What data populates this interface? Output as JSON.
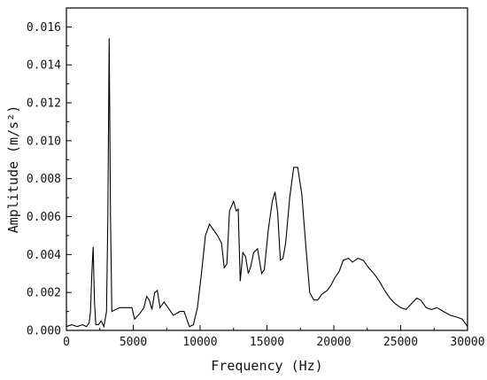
{
  "chart_data": {
    "type": "line",
    "xlabel": "Frequency (Hz)",
    "ylabel": "Amplitude (m/s²)",
    "xlim": [
      0,
      30000
    ],
    "ylim": [
      0,
      0.017
    ],
    "xticks": [
      0,
      5000,
      10000,
      15000,
      20000,
      25000,
      30000
    ],
    "xtick_labels": [
      "0",
      "5000",
      "10000",
      "15000",
      "20000",
      "25000",
      "30000"
    ],
    "yticks": [
      0,
      0.002,
      0.004,
      0.006,
      0.008,
      0.01,
      0.012,
      0.014,
      0.016
    ],
    "ytick_labels": [
      "0.000",
      "0.002",
      "0.004",
      "0.006",
      "0.008",
      "0.010",
      "0.012",
      "0.014",
      "0.016"
    ],
    "grid": false,
    "legend": "none",
    "series": [
      {
        "color": "#000000",
        "points": [
          [
            0,
            0.0002
          ],
          [
            400,
            0.0003
          ],
          [
            800,
            0.0002
          ],
          [
            1200,
            0.0003
          ],
          [
            1500,
            0.0002
          ],
          [
            1700,
            0.0004
          ],
          [
            1800,
            0.001
          ],
          [
            1900,
            0.003
          ],
          [
            2000,
            0.0044
          ],
          [
            2100,
            0.0015
          ],
          [
            2200,
            0.0003
          ],
          [
            2400,
            0.0003
          ],
          [
            2600,
            0.0005
          ],
          [
            2800,
            0.0002
          ],
          [
            3000,
            0.001
          ],
          [
            3100,
            0.006
          ],
          [
            3200,
            0.0154
          ],
          [
            3300,
            0.006
          ],
          [
            3400,
            0.001
          ],
          [
            3700,
            0.0011
          ],
          [
            4000,
            0.0012
          ],
          [
            4500,
            0.0012
          ],
          [
            4900,
            0.0012
          ],
          [
            5100,
            0.0006
          ],
          [
            5500,
            0.0009
          ],
          [
            5800,
            0.0012
          ],
          [
            6000,
            0.0018
          ],
          [
            6200,
            0.0016
          ],
          [
            6400,
            0.0011
          ],
          [
            6600,
            0.002
          ],
          [
            6800,
            0.0021
          ],
          [
            7000,
            0.0012
          ],
          [
            7300,
            0.0015
          ],
          [
            7600,
            0.0012
          ],
          [
            8000,
            0.0008
          ],
          [
            8500,
            0.001
          ],
          [
            8800,
            0.001
          ],
          [
            9200,
            0.0002
          ],
          [
            9500,
            0.0003
          ],
          [
            9800,
            0.0012
          ],
          [
            10100,
            0.003
          ],
          [
            10400,
            0.005
          ],
          [
            10700,
            0.0056
          ],
          [
            11000,
            0.0053
          ],
          [
            11300,
            0.005
          ],
          [
            11600,
            0.0046
          ],
          [
            11800,
            0.0033
          ],
          [
            12000,
            0.0035
          ],
          [
            12200,
            0.0063
          ],
          [
            12500,
            0.0068
          ],
          [
            12700,
            0.0063
          ],
          [
            12850,
            0.0064
          ],
          [
            13000,
            0.0026
          ],
          [
            13200,
            0.0041
          ],
          [
            13400,
            0.0039
          ],
          [
            13600,
            0.003
          ],
          [
            13800,
            0.0034
          ],
          [
            14000,
            0.0041
          ],
          [
            14300,
            0.0043
          ],
          [
            14600,
            0.003
          ],
          [
            14800,
            0.0032
          ],
          [
            15100,
            0.0053
          ],
          [
            15400,
            0.0068
          ],
          [
            15600,
            0.0073
          ],
          [
            15800,
            0.0062
          ],
          [
            16000,
            0.0037
          ],
          [
            16200,
            0.0038
          ],
          [
            16400,
            0.0046
          ],
          [
            16700,
            0.007
          ],
          [
            17000,
            0.0086
          ],
          [
            17300,
            0.0086
          ],
          [
            17600,
            0.0072
          ],
          [
            17900,
            0.0045
          ],
          [
            18200,
            0.002
          ],
          [
            18500,
            0.0016
          ],
          [
            18800,
            0.0016
          ],
          [
            19100,
            0.0019
          ],
          [
            19500,
            0.0021
          ],
          [
            19800,
            0.0024
          ],
          [
            20100,
            0.0028
          ],
          [
            20400,
            0.0031
          ],
          [
            20700,
            0.0037
          ],
          [
            21100,
            0.0038
          ],
          [
            21400,
            0.0036
          ],
          [
            21800,
            0.0038
          ],
          [
            22200,
            0.0037
          ],
          [
            22600,
            0.0033
          ],
          [
            23000,
            0.003
          ],
          [
            23400,
            0.0026
          ],
          [
            23800,
            0.0021
          ],
          [
            24200,
            0.0017
          ],
          [
            24600,
            0.0014
          ],
          [
            25000,
            0.0012
          ],
          [
            25400,
            0.0011
          ],
          [
            25800,
            0.0014
          ],
          [
            26200,
            0.0017
          ],
          [
            26500,
            0.0016
          ],
          [
            26900,
            0.0012
          ],
          [
            27300,
            0.0011
          ],
          [
            27700,
            0.0012
          ],
          [
            28200,
            0.001
          ],
          [
            28700,
            0.0008
          ],
          [
            29200,
            0.0007
          ],
          [
            29600,
            0.0006
          ],
          [
            30000,
            0.0002
          ]
        ]
      }
    ]
  }
}
